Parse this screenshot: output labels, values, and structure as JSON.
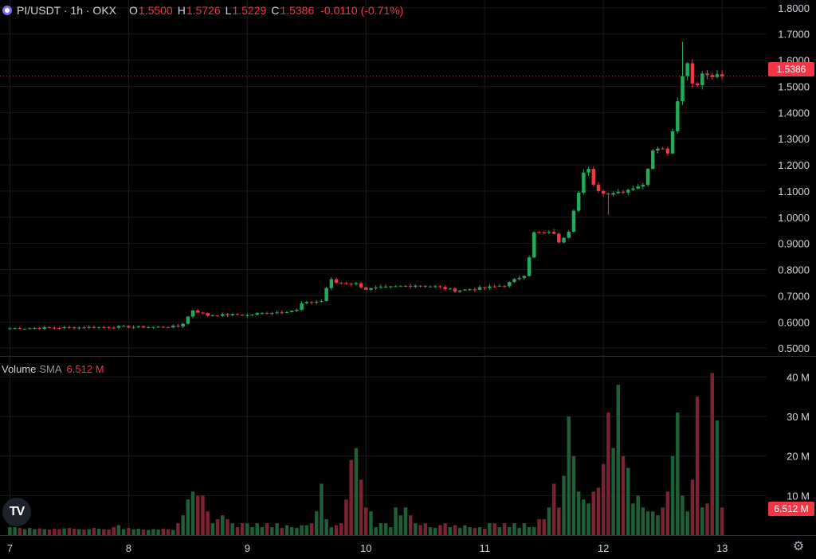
{
  "header": {
    "symbol": "PI/USDT · 1h · OKX",
    "open_label": "O",
    "open": "1.5500",
    "high_label": "H",
    "high": "1.5726",
    "low_label": "L",
    "low": "1.5229",
    "close_label": "C",
    "close": "1.5386",
    "change": "-0.0110 (-0.71%)",
    "coin_icon": "pi-coin-icon"
  },
  "volume_header": {
    "label": "Volume",
    "sma_label": "SMA",
    "sma_value": "6.512 M"
  },
  "last_price_tag": "1.5386",
  "volume_tag": "6.512 M",
  "logo_text": "TV",
  "colors": {
    "up": "#22ab58",
    "down": "#f23645",
    "up_vol": "#1f5f35",
    "down_vol": "#7a2331",
    "grid": "#1a1a1a"
  },
  "chart_data": [
    {
      "type": "candlestick",
      "y_ticks": [
        "0.5000",
        "0.6000",
        "0.7000",
        "0.8000",
        "0.9000",
        "1.0000",
        "1.1000",
        "1.2000",
        "1.3000",
        "1.4000",
        "1.5000",
        "1.6000",
        "1.7000",
        "1.8000"
      ],
      "ylim": [
        0.47,
        1.83
      ],
      "x_ticks": [
        "7",
        "8",
        "9",
        "10",
        "11",
        "12",
        "13"
      ],
      "x_tick_hours": [
        0,
        24,
        48,
        72,
        96,
        120,
        144
      ],
      "x_range_hours": [
        -2,
        153
      ],
      "last_price": 1.5386,
      "anchors": [
        [
          0,
          0.575
        ],
        [
          12,
          0.578
        ],
        [
          22,
          0.581
        ],
        [
          24,
          0.581
        ],
        [
          30,
          0.58
        ],
        [
          34,
          0.583
        ],
        [
          35,
          0.595
        ],
        [
          36,
          0.62
        ],
        [
          37,
          0.645
        ],
        [
          40,
          0.625
        ],
        [
          46,
          0.628
        ],
        [
          48,
          0.625
        ],
        [
          50,
          0.632
        ],
        [
          54,
          0.637
        ],
        [
          58,
          0.645
        ],
        [
          59,
          0.67
        ],
        [
          61,
          0.675
        ],
        [
          63,
          0.68
        ],
        [
          64,
          0.73
        ],
        [
          65,
          0.76
        ],
        [
          66,
          0.75
        ],
        [
          70,
          0.745
        ],
        [
          72,
          0.725
        ],
        [
          75,
          0.73
        ],
        [
          82,
          0.74
        ],
        [
          86,
          0.735
        ],
        [
          90,
          0.72
        ],
        [
          96,
          0.73
        ],
        [
          100,
          0.74
        ],
        [
          102,
          0.76
        ],
        [
          104,
          0.78
        ],
        [
          105,
          0.85
        ],
        [
          106,
          0.94
        ],
        [
          110,
          0.94
        ],
        [
          111,
          0.9
        ],
        [
          113,
          0.95
        ],
        [
          114,
          1.03
        ],
        [
          115,
          1.1
        ],
        [
          116,
          1.17
        ],
        [
          117,
          1.18
        ],
        [
          118,
          1.12
        ],
        [
          120,
          1.09
        ],
        [
          124,
          1.1
        ],
        [
          127,
          1.12
        ],
        [
          128,
          1.12
        ],
        [
          129,
          1.19
        ],
        [
          130,
          1.26
        ],
        [
          131,
          1.27
        ],
        [
          133,
          1.25
        ],
        [
          134,
          1.33
        ],
        [
          135,
          1.45
        ],
        [
          136,
          1.54
        ],
        [
          137,
          1.59
        ],
        [
          138,
          1.52
        ],
        [
          139,
          1.5
        ],
        [
          140,
          1.55
        ],
        [
          141,
          1.5386
        ]
      ],
      "spikes": {
        "136": 1.67,
        "121": 1.01
      }
    },
    {
      "type": "bar",
      "series_name": "Volume",
      "y_ticks": [
        "10 M",
        "20 M",
        "30 M",
        "40 M"
      ],
      "ylim": [
        0,
        43.5
      ],
      "volume_m": [
        2,
        2,
        1.8,
        1.5,
        1.8,
        1.5,
        1.7,
        1.5,
        1.4,
        1.6,
        1.5,
        1.7,
        1.8,
        1.6,
        1.5,
        1.4,
        1.5,
        1.8,
        1.6,
        1.5,
        1.4,
        2,
        2.5,
        1.5,
        1.8,
        1.5,
        1.6,
        1.4,
        1.3,
        1.5,
        1.4,
        1.6,
        1.5,
        1.3,
        3,
        5,
        9,
        11,
        10,
        10,
        6,
        3,
        4,
        5,
        4,
        3,
        2,
        3,
        3,
        2,
        3,
        2,
        3,
        2,
        3,
        1.8,
        2.5,
        2,
        1.8,
        2.5,
        2.5,
        3,
        6,
        13,
        4,
        2,
        2.5,
        3,
        9,
        19,
        22,
        14,
        7,
        6,
        2,
        3,
        3,
        2,
        7,
        5,
        7,
        5,
        3,
        2.5,
        3,
        2,
        1.8,
        2.5,
        3,
        2,
        2.5,
        1.8,
        2.5,
        2,
        1.8,
        2,
        1.6,
        3,
        3,
        2,
        3,
        2,
        3,
        1.8,
        3,
        2,
        2,
        4,
        4,
        7,
        13,
        7,
        15,
        30,
        20,
        11,
        9,
        8,
        11,
        12,
        18,
        31,
        22,
        38,
        20,
        17,
        8,
        10,
        7,
        6,
        6,
        5,
        7,
        11,
        20,
        31,
        10,
        6,
        14,
        35,
        7,
        8,
        41,
        29,
        7
      ]
    }
  ]
}
